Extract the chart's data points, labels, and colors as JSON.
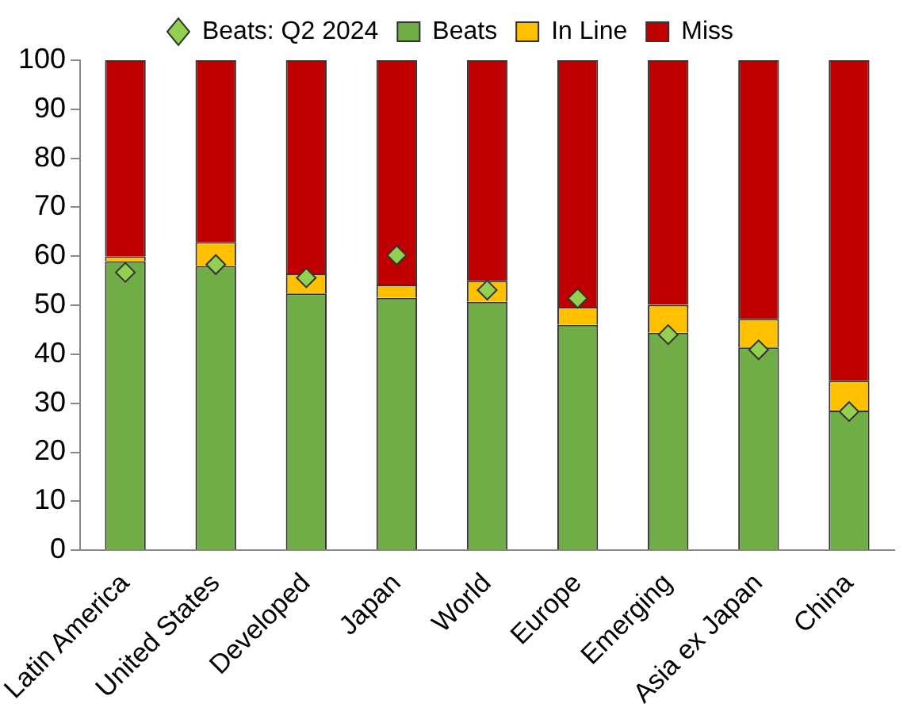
{
  "chart_data": {
    "type": "bar",
    "stacked": true,
    "categories": [
      "Latin America",
      "United States",
      "Developed",
      "Japan",
      "World",
      "Europe",
      "Emerging",
      "Asia ex Japan",
      "China"
    ],
    "series": [
      {
        "name": "Beats",
        "color": "#70ad47",
        "values": [
          59.0,
          58.0,
          52.4,
          51.5,
          50.7,
          46.0,
          44.4,
          41.4,
          28.5
        ]
      },
      {
        "name": "In Line",
        "color": "#ffc000",
        "values": [
          1.0,
          4.9,
          4.1,
          2.7,
          4.3,
          3.7,
          5.7,
          5.8,
          6.1
        ]
      },
      {
        "name": "Miss",
        "color": "#c00000",
        "values": [
          40.0,
          37.1,
          43.5,
          45.8,
          45.0,
          50.3,
          49.9,
          52.8,
          65.4
        ]
      },
      {
        "name": "Beats: Q2 2024",
        "type": "scatter",
        "color": "#92d050",
        "x": [
          "Latin America",
          "United States",
          "Developed",
          "Japan",
          "World",
          "Europe",
          "Emerging",
          "Asia ex Japan",
          "China"
        ],
        "values": [
          56.7,
          58.3,
          55.6,
          60.2,
          53.1,
          51.4,
          44.0,
          40.9,
          28.3
        ]
      }
    ],
    "ylim": [
      0,
      100
    ],
    "yticks": [
      0,
      10,
      20,
      30,
      40,
      50,
      60,
      70,
      80,
      90,
      100
    ],
    "grid": false,
    "legend": "top",
    "marker": "diamond"
  }
}
